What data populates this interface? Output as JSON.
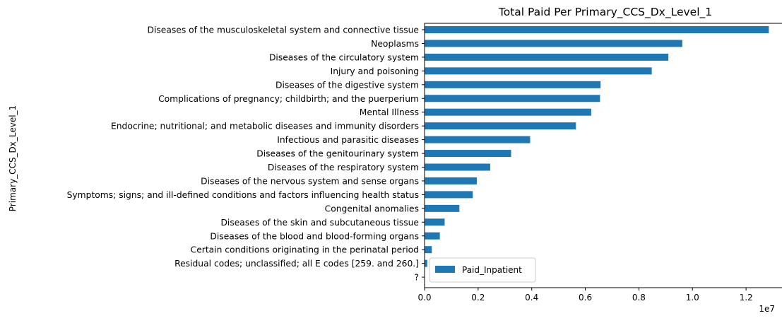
{
  "chart_data": {
    "type": "bar",
    "orientation": "horizontal",
    "title": "Total Paid Per Primary_CCS_Dx_Level_1",
    "xlabel": "",
    "ylabel": "Primary_CCS_Dx_Level_1",
    "x_scale_label": "1e7",
    "xlim": [
      0,
      1.35
    ],
    "xticks": [
      0.0,
      0.2,
      0.4,
      0.6,
      0.8,
      1.0,
      1.2
    ],
    "xtick_labels": [
      "0.0",
      "0.2",
      "0.4",
      "0.6",
      "0.8",
      "1.0",
      "1.2"
    ],
    "grid": false,
    "legend_position": "lower-left",
    "bar_color": "#1f77b4",
    "categories": [
      "Diseases of the musculoskeletal system and connective tissue",
      "Neoplasms",
      "Diseases of the circulatory system",
      "Injury and poisoning",
      "Diseases of the digestive system",
      "Complications of pregnancy; childbirth; and the puerperium",
      "Mental Illness",
      "Endocrine; nutritional; and metabolic diseases and immunity disorders",
      "Infectious and parasitic diseases",
      "Diseases of the genitourinary system",
      "Diseases of the respiratory system",
      "Diseases of the nervous system and sense organs",
      "Symptoms; signs; and ill-defined conditions and factors influencing health status",
      "Congenital anomalies",
      "Diseases of the skin and subcutaneous tissue",
      "Diseases of the blood and blood-forming organs",
      "Certain conditions originating in the perinatal period",
      "Residual codes; unclassified; all E codes [259. and 260.]",
      "?"
    ],
    "series": [
      {
        "name": "Paid_Inpatient",
        "values": [
          1.285,
          0.962,
          0.91,
          0.848,
          0.657,
          0.655,
          0.622,
          0.565,
          0.394,
          0.323,
          0.245,
          0.195,
          0.18,
          0.13,
          0.075,
          0.057,
          0.027,
          0.01,
          0.0
        ]
      }
    ]
  }
}
